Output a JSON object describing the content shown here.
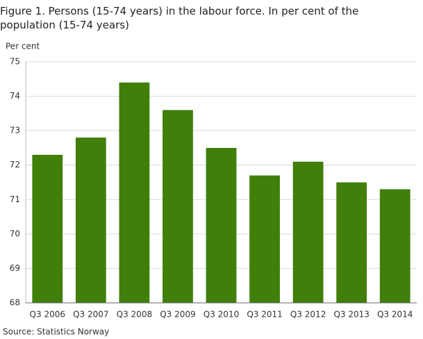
{
  "chart_data": {
    "type": "bar",
    "title": "Figure 1. Persons (15-74 years) in the labour force. In per cent of the population (15-74 years)",
    "y_axis_label": "Per cent",
    "source": "Source: Statistics Norway",
    "categories": [
      "Q3 2006",
      "Q3 2007",
      "Q3 2008",
      "Q3 2009",
      "Q3 2010",
      "Q3 2011",
      "Q3 2012",
      "Q3 2013",
      "Q3 2014"
    ],
    "values": [
      72.3,
      72.8,
      74.4,
      73.6,
      72.5,
      71.7,
      72.1,
      71.5,
      71.3
    ],
    "color": "#3f7f0a",
    "ylim": [
      68,
      75
    ],
    "yticks": [
      68,
      69,
      70,
      71,
      72,
      73,
      74,
      75
    ],
    "grid": true
  }
}
